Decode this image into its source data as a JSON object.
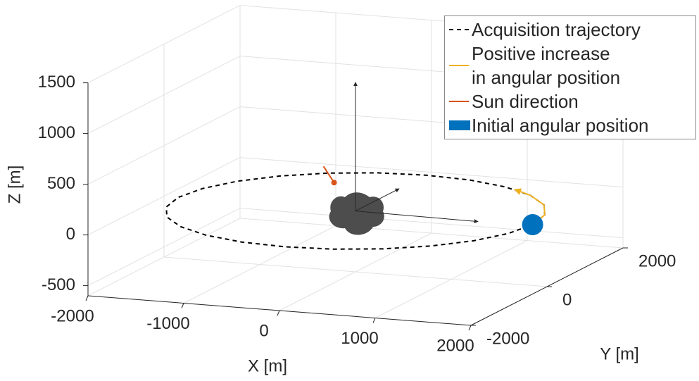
{
  "chart_data": {
    "type": "line3d",
    "xlabel": "X [m]",
    "ylabel": "Y [m]",
    "zlabel": "Z [m]",
    "xlim": [
      -2000,
      2000
    ],
    "ylim": [
      -2000,
      2000
    ],
    "zlim": [
      -600,
      1500
    ],
    "xticks": [
      -2000,
      -1000,
      0,
      1000,
      2000
    ],
    "yticks": [
      -2000,
      0,
      2000
    ],
    "zticks": [
      -500,
      0,
      500,
      1000,
      1500
    ],
    "grid": true,
    "body_axes": {
      "x": [
        1300,
        0,
        0
      ],
      "y": [
        -50,
        1150,
        0
      ],
      "z": [
        0,
        0,
        1270
      ],
      "color": "#262626"
    },
    "series": [
      {
        "name": "Acquisition trajectory",
        "color": "#000000",
        "style": "dashed",
        "x": [
          1850,
          1787,
          1602,
          1308,
          925,
          479,
          0,
          -479,
          -925,
          -1308,
          -1602,
          -1787,
          -1850,
          -1787,
          -1602,
          -1308,
          -925,
          -479,
          0,
          479,
          925,
          1308,
          1602,
          1787,
          1850
        ],
        "y": [
          0,
          479,
          925,
          1308,
          1602,
          1787,
          1850,
          1787,
          1602,
          1308,
          925,
          479,
          0,
          -479,
          -925,
          -1308,
          -1602,
          -1787,
          -1850,
          -1787,
          -1602,
          -1308,
          -925,
          -479,
          0
        ],
        "z": [
          0,
          0,
          0,
          0,
          0,
          0,
          0,
          0,
          0,
          0,
          0,
          0,
          0,
          0,
          0,
          0,
          0,
          0,
          0,
          0,
          0,
          0,
          0,
          0,
          0
        ]
      },
      {
        "name": "Positive increase\nin angular position",
        "color": "#EDB120",
        "style": "arrow",
        "x": [
          1850,
          1787,
          1602,
          1308,
          1061
        ],
        "y": [
          0,
          479,
          925,
          1308,
          1515
        ],
        "z": [
          0,
          0,
          0,
          0,
          0
        ]
      },
      {
        "name": "Sun direction",
        "color": "#D95319",
        "style": "dot-end",
        "x": [
          -850,
          -700
        ],
        "y": [
          1300,
          1200
        ],
        "z": [
          130,
          0
        ]
      },
      {
        "name": "Initial angular position",
        "color": "#0072BD",
        "style": "marker",
        "x": [
          1850
        ],
        "y": [
          0
        ],
        "z": [
          0
        ]
      }
    ]
  }
}
